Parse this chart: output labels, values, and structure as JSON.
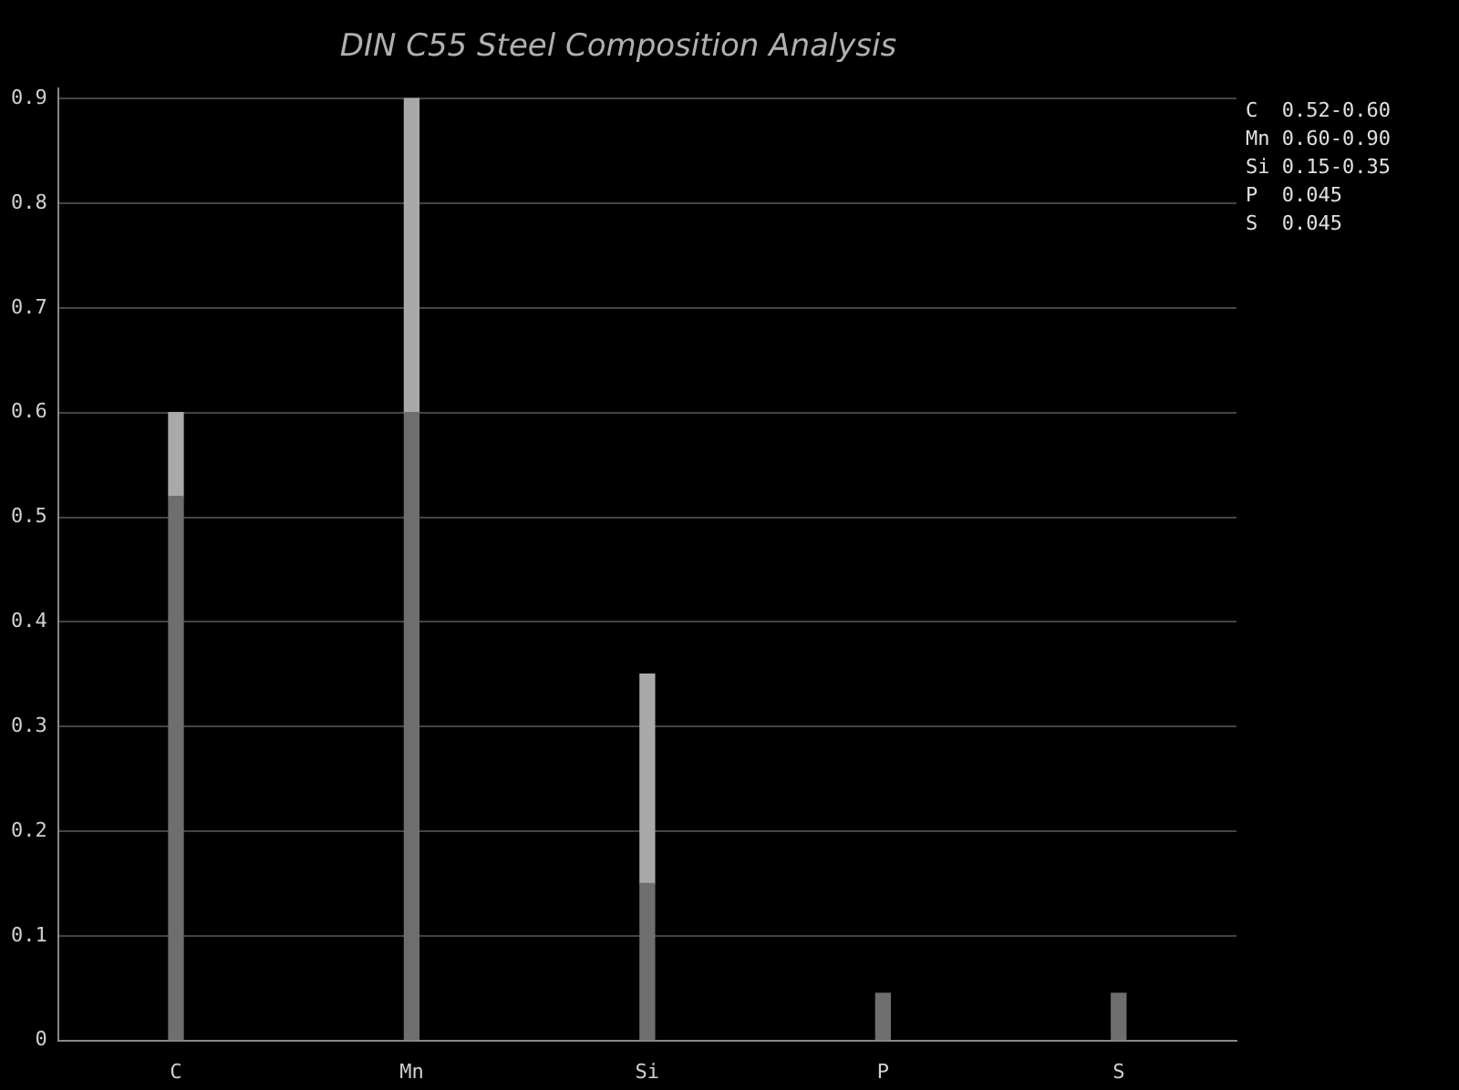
{
  "chart_data": {
    "type": "bar",
    "title": "DIN C55 Steel Composition Analysis",
    "categories": [
      "C",
      "Mn",
      "Si",
      "P",
      "S"
    ],
    "stacked": true,
    "series": [
      {
        "color": "#6e6e6e",
        "values": [
          0.52,
          0.6,
          0.15,
          0.045,
          0.045
        ]
      },
      {
        "color": "#a9a9a9",
        "values": [
          0.08,
          0.3,
          0.2,
          null,
          null
        ]
      }
    ],
    "ylim": [
      0,
      0.91
    ],
    "yticks": [
      0,
      0.1,
      0.2,
      0.3,
      0.4,
      0.5,
      0.6,
      0.7,
      0.8,
      0.9
    ],
    "grid": "y",
    "legend": false,
    "annotations": [
      "C  0.52-0.60",
      "Mn 0.60-0.90",
      "Si 0.15-0.35",
      "P  0.045",
      "S  0.045"
    ]
  }
}
